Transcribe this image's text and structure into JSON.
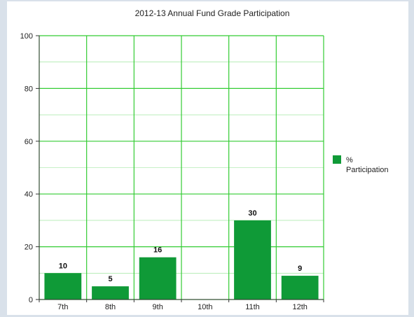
{
  "chart_data": {
    "type": "bar",
    "title": "2012-13 Annual Fund Grade Participation",
    "xlabel": "",
    "ylabel": "",
    "categories": [
      "7th",
      "8th",
      "9th",
      "10th",
      "11th",
      "12th"
    ],
    "series": [
      {
        "name": "% Participation",
        "values": [
          10,
          5,
          16,
          0,
          30,
          9
        ]
      }
    ],
    "data_labels": [
      "10",
      "5",
      "16",
      "",
      "30",
      "9"
    ],
    "ylim": [
      0,
      100
    ],
    "yticks": [
      0,
      20,
      40,
      60,
      80,
      100
    ],
    "grid": true,
    "legend": {
      "position": "right",
      "label_lines": [
        "%",
        "Participation"
      ]
    },
    "colors": {
      "bar": "#0f9a37",
      "grid": "#33cc33",
      "axis": "#333333"
    }
  }
}
